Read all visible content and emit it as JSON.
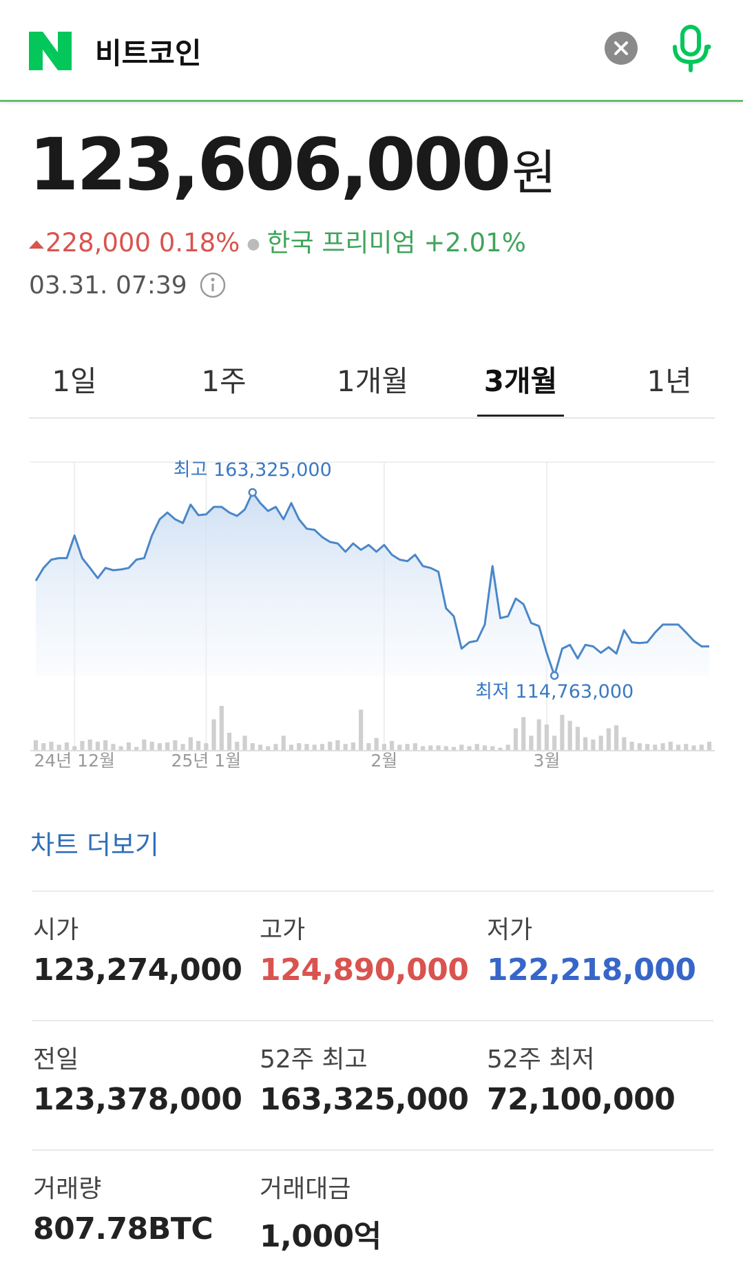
{
  "header": {
    "title": "비트코인"
  },
  "price": {
    "value": "123,606,000",
    "unit": "원"
  },
  "change": {
    "amount": "228,000",
    "percent": "0.18%"
  },
  "premium": {
    "label": "한국 프리미엄",
    "value": "+2.01%"
  },
  "timestamp": "03.31. 07:39",
  "tabs": [
    "1일",
    "1주",
    "1개월",
    "3개월",
    "1년"
  ],
  "active_tab": 3,
  "chart_data": {
    "type": "line",
    "color": "#4a86c8",
    "volume_color": "#cfcfcf",
    "categories": [
      null,
      null,
      null,
      null,
      null,
      "24년 12월",
      null,
      null,
      null,
      null,
      null,
      null,
      null,
      null,
      null,
      null,
      null,
      null,
      null,
      null,
      null,
      null,
      "25년 1월",
      null,
      null,
      null,
      null,
      null,
      null,
      null,
      null,
      null,
      null,
      null,
      null,
      null,
      null,
      null,
      null,
      null,
      null,
      null,
      null,
      null,
      null,
      "2월",
      null,
      null,
      null,
      null,
      null,
      null,
      null,
      null,
      null,
      null,
      null,
      null,
      null,
      null,
      null,
      null,
      null,
      null,
      null,
      null,
      "3월",
      null,
      null,
      null,
      null,
      null,
      null,
      null,
      null,
      null,
      null,
      null,
      null,
      null,
      null,
      null,
      null,
      null,
      null,
      null,
      null,
      null
    ],
    "values": [
      139900000,
      143300000,
      145500000,
      145900000,
      145900000,
      151900000,
      145900000,
      143300000,
      140600000,
      143300000,
      142700000,
      142900000,
      143300000,
      145500000,
      145900000,
      151900000,
      156200000,
      158000000,
      156200000,
      155200000,
      160100000,
      157300000,
      157500000,
      159500000,
      159500000,
      158000000,
      157100000,
      158800000,
      163325000,
      160500000,
      158400000,
      159500000,
      156200000,
      160500000,
      156200000,
      153700000,
      153400000,
      151500000,
      150200000,
      149800000,
      147600000,
      149800000,
      148100000,
      149400000,
      147600000,
      149400000,
      146800000,
      145500000,
      145100000,
      146800000,
      143800000,
      143300000,
      142300000,
      132600000,
      130500000,
      121900000,
      123600000,
      124000000,
      128300000,
      143800000,
      130000000,
      130500000,
      135200000,
      133700000,
      128700000,
      127900000,
      120800000,
      114763000,
      121900000,
      122900000,
      119300000,
      122900000,
      122500000,
      120800000,
      122300000,
      120600000,
      126800000,
      123600000,
      123400000,
      123600000,
      126200000,
      128300000,
      128300000,
      128300000,
      126200000,
      124000000,
      122500000,
      122500000
    ],
    "volumes": [
      14,
      10,
      12,
      8,
      11,
      6,
      13,
      15,
      12,
      14,
      9,
      6,
      11,
      5,
      15,
      12,
      10,
      11,
      14,
      9,
      18,
      13,
      10,
      42,
      60,
      24,
      12,
      20,
      10,
      8,
      6,
      9,
      20,
      8,
      10,
      9,
      8,
      9,
      12,
      14,
      9,
      11,
      55,
      10,
      17,
      9,
      13,
      8,
      9,
      10,
      6,
      7,
      7,
      6,
      5,
      8,
      6,
      9,
      7,
      6,
      4,
      8,
      30,
      45,
      20,
      42,
      35,
      20,
      48,
      40,
      32,
      18,
      15,
      20,
      30,
      34,
      18,
      12,
      10,
      9,
      8,
      10,
      12,
      8,
      9,
      7,
      8,
      12
    ],
    "high": {
      "label": "최고",
      "value_label": "163,325,000"
    },
    "low": {
      "label": "최저",
      "value_label": "114,763,000"
    }
  },
  "more_link": "차트 더보기",
  "stats": [
    [
      {
        "label": "시가",
        "value": "123,274,000"
      },
      {
        "label": "고가",
        "value": "124,890,000",
        "color": "#d9534f"
      },
      {
        "label": "저가",
        "value": "122,218,000",
        "color": "#3766c9"
      }
    ],
    [
      {
        "label": "전일",
        "value": "123,378,000"
      },
      {
        "label": "52주 최고",
        "value": "163,325,000"
      },
      {
        "label": "52주 최저",
        "value": "72,100,000"
      }
    ],
    [
      {
        "label": "거래량",
        "value": "807.78BTC"
      },
      {
        "label": "거래대금",
        "value": "1,000억"
      }
    ]
  ]
}
